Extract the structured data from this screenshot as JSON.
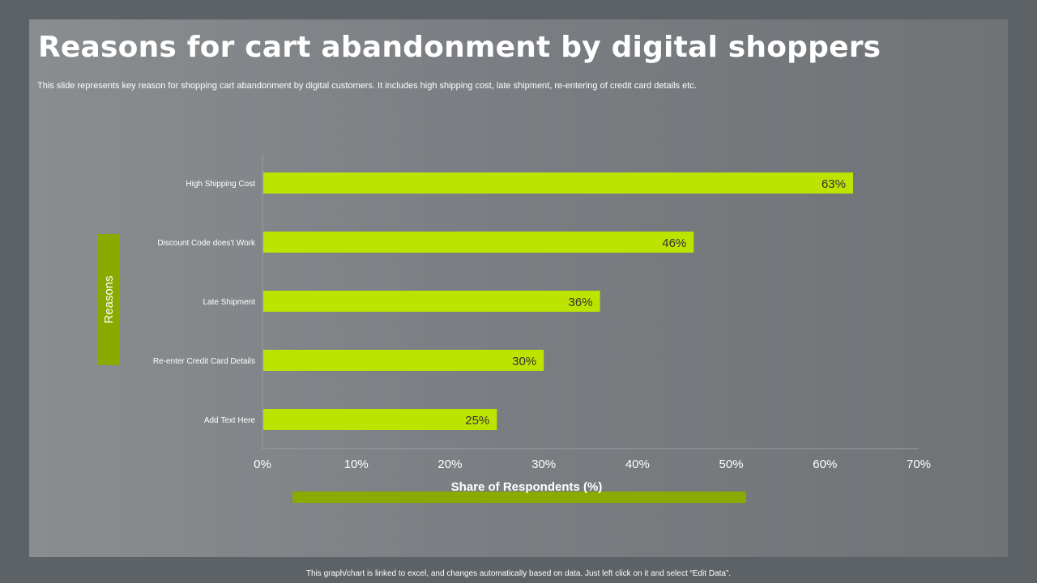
{
  "slide": {
    "title": "Reasons for cart abandonment by digital shoppers",
    "subtitle": "This slide represents  key reason for shopping cart abandonment by digital customers. It includes high shipping cost, late shipment, re-entering of credit card details etc.",
    "footer_note": "This graph/chart is linked to excel, and changes automatically based on data. Just left click on it and select “Edit Data”."
  },
  "colors": {
    "bar": "#bde400",
    "accent_block": "#8aaa00",
    "axis_line": "#9a9ea2"
  },
  "chart_data": {
    "type": "bar",
    "orientation": "horizontal",
    "categories": [
      "High Shipping Cost",
      "Discount Code does't Work",
      "Late Shipment",
      "Re-enter Credit Card Details",
      "Add Text Here"
    ],
    "values": [
      63,
      46,
      36,
      30,
      25
    ],
    "data_labels": [
      "63%",
      "46%",
      "36%",
      "30%",
      "25%"
    ],
    "xlabel": "Share of Respondents (%)",
    "ylabel": "Reasons",
    "xlim": [
      0,
      70
    ],
    "xticks": [
      0,
      10,
      20,
      30,
      40,
      50,
      60,
      70
    ],
    "xtick_labels": [
      "0%",
      "10%",
      "20%",
      "30%",
      "40%",
      "50%",
      "60%",
      "70%"
    ],
    "grid": false
  }
}
